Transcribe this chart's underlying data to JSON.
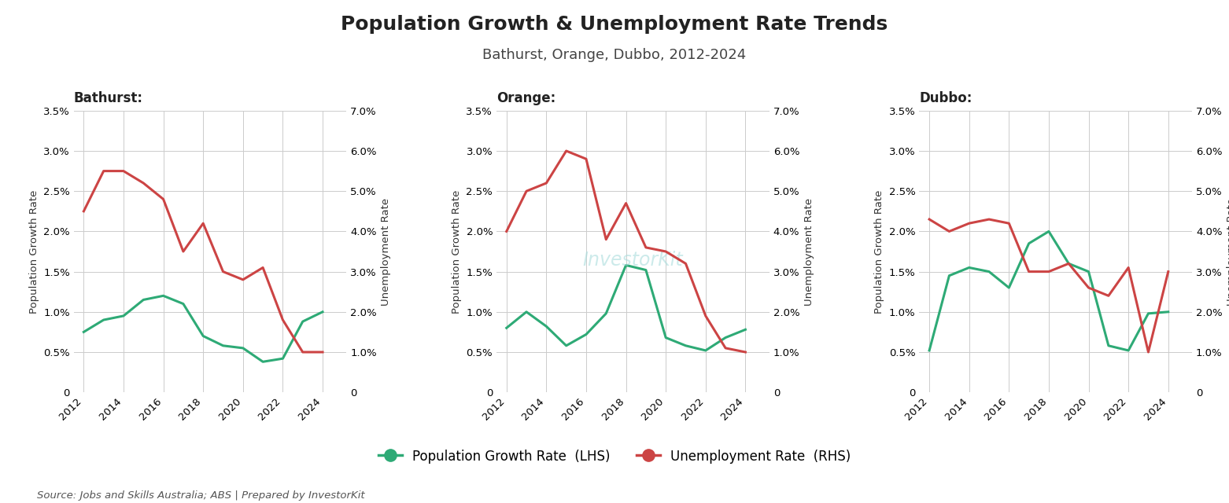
{
  "title": "Population Growth & Unemployment Rate Trends",
  "subtitle": "Bathurst, Orange, Dubbo, 2012-2024",
  "source": "Source: Jobs and Skills Australia; ABS | Prepared by InvestorKit",
  "legend_pop": "Population Growth Rate  (LHS)",
  "legend_unemp": "Unemployment Rate  (RHS)",
  "watermark": "InvestorKit",
  "cities": [
    "Bathurst",
    "Orange",
    "Dubbo"
  ],
  "years": [
    2012,
    2013,
    2014,
    2015,
    2016,
    2017,
    2018,
    2019,
    2020,
    2021,
    2022,
    2023,
    2024
  ],
  "bathurst": {
    "pop": [
      0.75,
      0.9,
      0.95,
      1.15,
      1.2,
      1.1,
      0.7,
      0.58,
      0.55,
      0.38,
      0.42,
      0.88,
      1.0
    ],
    "unemp": [
      4.5,
      5.5,
      5.5,
      5.2,
      4.8,
      3.5,
      4.2,
      3.0,
      2.8,
      3.1,
      1.8,
      1.0,
      1.0
    ]
  },
  "orange": {
    "pop": [
      0.8,
      1.0,
      0.82,
      0.58,
      0.72,
      0.98,
      1.58,
      1.52,
      0.68,
      0.58,
      0.52,
      0.68,
      0.78
    ],
    "unemp": [
      4.0,
      5.0,
      5.2,
      6.0,
      5.8,
      3.8,
      4.7,
      3.6,
      3.5,
      3.2,
      1.9,
      1.1,
      1.0
    ]
  },
  "dubbo": {
    "pop": [
      0.52,
      1.45,
      1.55,
      1.5,
      1.3,
      1.85,
      2.0,
      1.6,
      1.5,
      0.58,
      0.52,
      0.98,
      1.0
    ],
    "unemp": [
      4.3,
      4.0,
      4.2,
      4.3,
      4.2,
      3.0,
      3.0,
      3.2,
      2.6,
      2.4,
      3.1,
      1.0,
      3.0
    ]
  },
  "pop_color": "#2eaa76",
  "unemp_color": "#cc4444",
  "lhs_ylim": [
    0,
    3.5
  ],
  "rhs_ylim": [
    0,
    7.0
  ],
  "lhs_ticks": [
    0.0,
    0.5,
    1.0,
    1.5,
    2.0,
    2.5,
    3.0,
    3.5
  ],
  "rhs_ticks": [
    0.0,
    1.0,
    2.0,
    3.0,
    4.0,
    5.0,
    6.0,
    7.0
  ],
  "background_color": "#ffffff",
  "line_width": 2.2,
  "title_fontsize": 18,
  "subtitle_fontsize": 13,
  "tick_fontsize": 9.5,
  "label_fontsize": 9.5,
  "city_title_fontsize": 12
}
